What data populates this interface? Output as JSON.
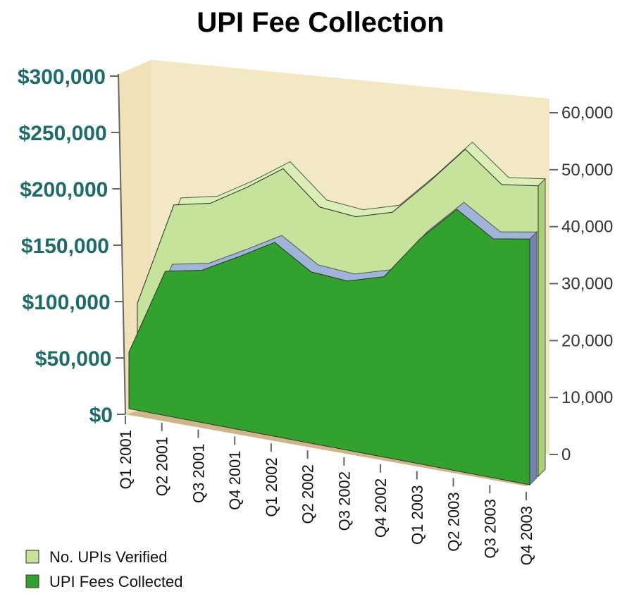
{
  "chart_data": {
    "type": "area",
    "title": "UPI Fee Collection",
    "categories": [
      "Q1 2001",
      "Q2 2001",
      "Q3 2001",
      "Q4 2001",
      "Q1 2002",
      "Q2 2002",
      "Q3 2002",
      "Q4 2002",
      "Q1 2003",
      "Q2 2003",
      "Q3 2003",
      "Q4 2003"
    ],
    "series": [
      {
        "name": "No. UPIs Verified",
        "axis": "right",
        "color": "#c5e39a",
        "values": [
          17000,
          35500,
          37000,
          41000,
          45500,
          40000,
          39500,
          41500,
          48000,
          55000,
          50000,
          51000
        ]
      },
      {
        "name": "UPI Fees Collected",
        "axis": "left",
        "color": "#33a12e",
        "values": [
          50000,
          128000,
          135000,
          153000,
          172000,
          152000,
          150000,
          160000,
          200000,
          232000,
          212000,
          218000
        ]
      }
    ],
    "left_axis": {
      "ticks": [
        "$0",
        "$50,000",
        "$100,000",
        "$150,000",
        "$200,000",
        "$250,000",
        "$300,000"
      ],
      "range": [
        0,
        300000
      ]
    },
    "right_axis": {
      "ticks": [
        "0",
        "10,000",
        "20,000",
        "30,000",
        "40,000",
        "50,000",
        "60,000"
      ],
      "range": [
        0,
        60000
      ]
    },
    "legend_position": "bottom-left",
    "background_color": "#f3e8c4"
  }
}
